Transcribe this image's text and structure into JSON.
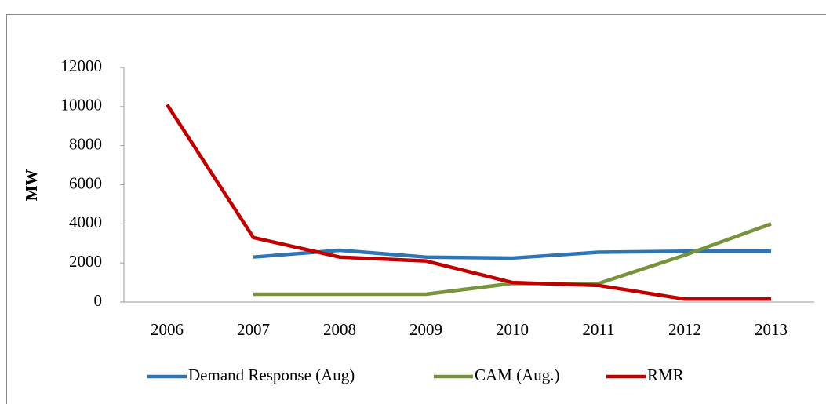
{
  "chart_data": {
    "type": "line",
    "y_label": "MW",
    "categories": [
      "2006",
      "2007",
      "2008",
      "2009",
      "2010",
      "2011",
      "2012",
      "2013"
    ],
    "series": [
      {
        "name": "Demand Response (Aug)",
        "color": "#2e75b6",
        "values": [
          null,
          2300,
          2650,
          2300,
          2250,
          2550,
          2600,
          2600
        ]
      },
      {
        "name": "CAM (Aug.)",
        "color": "#77933c",
        "values": [
          null,
          400,
          400,
          400,
          950,
          950,
          2400,
          4000
        ]
      },
      {
        "name": "RMR",
        "color": "#c00000",
        "values": [
          10100,
          3300,
          2300,
          2100,
          1000,
          850,
          150,
          150
        ]
      }
    ],
    "ylim": [
      0,
      12000
    ],
    "yticks": [
      0,
      2000,
      4000,
      6000,
      8000,
      10000,
      12000
    ],
    "grid": false,
    "legend": "bottom"
  }
}
